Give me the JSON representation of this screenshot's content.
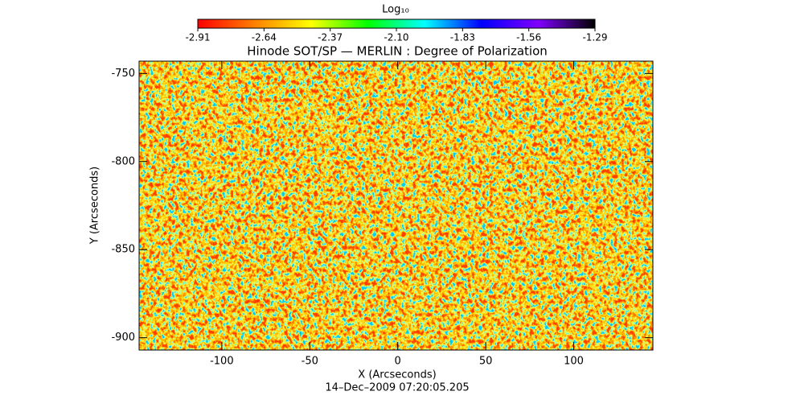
{
  "chart_data": {
    "type": "image",
    "title": "Hinode SOT/SP — MERLIN : Degree of Polarization",
    "xlabel": "X (Arcseconds)",
    "ylabel": "Y (Arcseconds)",
    "date": "14–Dec–2009 07:20:05.205",
    "xlim": [
      -147,
      145
    ],
    "xticks": [
      -100,
      -50,
      0,
      50,
      100
    ],
    "ylim": [
      -907,
      -743
    ],
    "yticks": [
      -900,
      -850,
      -800,
      -750
    ],
    "colorbar": {
      "label": "Log₁₀",
      "lim": [
        -2.91,
        -1.29
      ],
      "ticks": [
        -2.91,
        -2.64,
        -2.37,
        {
          "value": -2.1,
          "label": "-2.10"
        },
        -1.83,
        -1.56,
        -1.29
      ],
      "colors": [
        "#ff0000",
        "#ff8000",
        "#ffff00",
        "#00ff00",
        "#00ffff",
        "#0000ff",
        "#8000ff",
        "#000000"
      ]
    }
  }
}
